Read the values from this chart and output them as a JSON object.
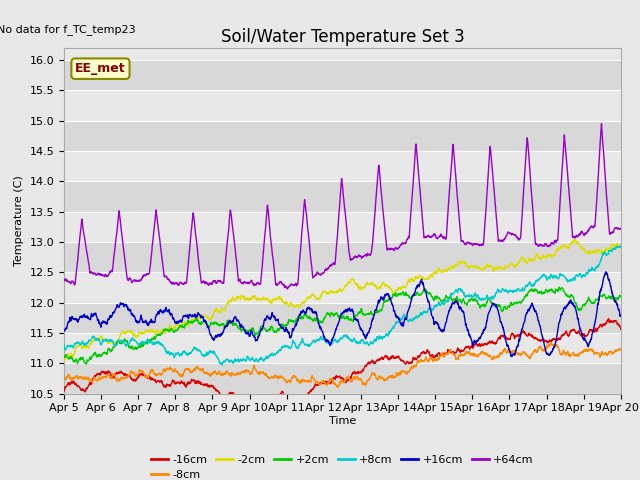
{
  "title": "Soil/Water Temperature Set 3",
  "no_data_label": "No data for f_TC_temp23",
  "ee_met_label": "EE_met",
  "xlabel": "Time",
  "ylabel": "Temperature (C)",
  "ylim": [
    10.5,
    16.2
  ],
  "yticks": [
    10.5,
    11.0,
    11.5,
    12.0,
    12.5,
    13.0,
    13.5,
    14.0,
    14.5,
    15.0,
    15.5,
    16.0
  ],
  "xtick_labels": [
    "Apr 5",
    "Apr 6",
    "Apr 7",
    "Apr 8",
    "Apr 9",
    "Apr 10",
    "Apr 11",
    "Apr 12",
    "Apr 13",
    "Apr 14",
    "Apr 15",
    "Apr 16",
    "Apr 17",
    "Apr 18",
    "Apr 19",
    "Apr 20"
  ],
  "series_labels": [
    "-16cm",
    "-8cm",
    "-2cm",
    "+2cm",
    "+8cm",
    "+16cm",
    "+64cm"
  ],
  "series_colors": [
    "#dd0000",
    "#ff8800",
    "#dddd00",
    "#00cc00",
    "#00cccc",
    "#0000cc",
    "#9900cc"
  ],
  "background_color": "#e8e8e8",
  "plot_bg_color": "#e8e8e8",
  "grid_color": "#ffffff",
  "title_fontsize": 12,
  "axis_fontsize": 8,
  "legend_fontsize": 8
}
